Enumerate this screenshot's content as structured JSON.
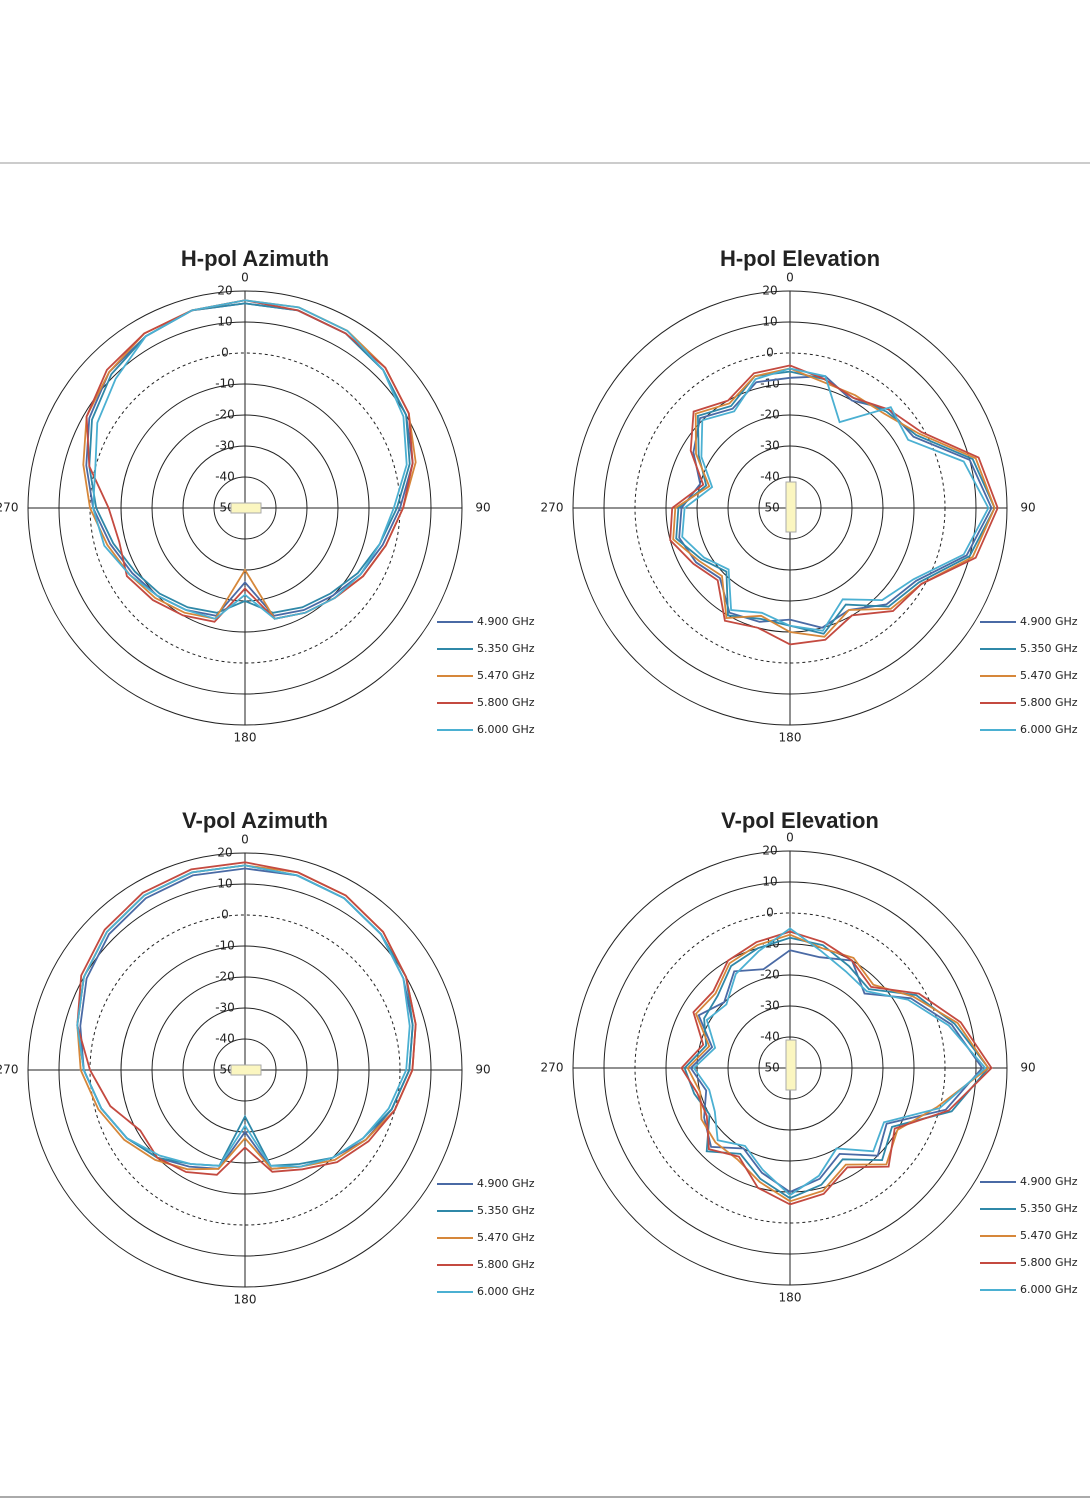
{
  "chart_data": [
    {
      "type": "polar",
      "title": "H-pol Azimuth",
      "x": [
        0,
        15,
        30,
        45,
        60,
        75,
        90,
        105,
        120,
        135,
        150,
        165,
        180,
        195,
        210,
        225,
        240,
        255,
        270,
        285,
        300,
        315,
        330,
        345
      ],
      "xlim": [
        0,
        360
      ],
      "xticks": [
        0,
        90,
        180,
        270
      ],
      "ylim": [
        -50,
        20
      ],
      "yticks": [
        20,
        10,
        0,
        -10,
        -20,
        -30,
        -40,
        -50
      ],
      "grid": true,
      "series": [
        {
          "name": "4.900 GHz",
          "color": "#4a6aa5",
          "values": [
            16,
            16,
            15,
            13,
            10,
            6,
            0,
            -4,
            -7,
            -10,
            -12,
            -14,
            -26,
            -14,
            -12,
            -10,
            -8,
            -5,
            -1,
            3,
            8,
            12,
            14,
            16
          ]
        },
        {
          "name": "5.350 GHz",
          "color": "#2f88a8",
          "values": [
            16,
            16,
            15,
            13,
            10,
            5,
            -1,
            -5,
            -8,
            -11,
            -13,
            -15,
            -20,
            -15,
            -13,
            -11,
            -9,
            -6,
            -2,
            2,
            7,
            11,
            14,
            16
          ]
        },
        {
          "name": "5.470 GHz",
          "color": "#d6873a",
          "values": [
            17,
            17,
            16,
            14,
            11,
            7,
            1,
            -3,
            -6,
            -9,
            -11,
            -13,
            -30,
            -13,
            -11,
            -9,
            -7,
            -4,
            0,
            4,
            9,
            12,
            15,
            16
          ]
        },
        {
          "name": "5.800 GHz",
          "color": "#c44a40",
          "values": [
            17,
            16,
            15,
            14,
            11,
            6,
            1,
            -3,
            -6,
            -9,
            -11,
            -13,
            -24,
            -12,
            -10,
            -8,
            -6,
            -8,
            -6,
            2,
            9,
            13,
            15,
            16
          ]
        },
        {
          "name": "6.000 GHz",
          "color": "#4bb0d2",
          "values": [
            17,
            17,
            16,
            13,
            9,
            4,
            -2,
            -5,
            -7,
            -9,
            -11,
            -13,
            -22,
            -13,
            -12,
            -10,
            -7,
            -3,
            -1,
            0,
            5,
            9,
            14,
            16
          ]
        }
      ]
    },
    {
      "type": "polar",
      "title": "H-pol Elevation",
      "x": [
        0,
        15,
        30,
        45,
        60,
        75,
        90,
        105,
        120,
        135,
        150,
        165,
        180,
        195,
        210,
        225,
        240,
        255,
        270,
        285,
        300,
        315,
        330,
        345
      ],
      "xlim": [
        0,
        360
      ],
      "xticks": [
        0,
        90,
        180,
        270
      ],
      "ylim": [
        -50,
        20
      ],
      "yticks": [
        20,
        10,
        0,
        -10,
        -20,
        -30,
        -40,
        -50
      ],
      "grid": true,
      "series": [
        {
          "name": "4.900 GHz",
          "color": "#4a6aa5",
          "values": [
            -8,
            -6,
            -10,
            -5,
            -4,
            10,
            15,
            9,
            -3,
            -6,
            -12,
            -10,
            -14,
            -12,
            -11,
            -18,
            -15,
            -13,
            -15,
            -20,
            -14,
            -9,
            -13,
            -8
          ]
        },
        {
          "name": "5.350 GHz",
          "color": "#2f88a8",
          "values": [
            -6,
            -7,
            -9,
            -6,
            -3,
            11,
            16,
            10,
            -2,
            -5,
            -14,
            -8,
            -12,
            -13,
            -10,
            -21,
            -17,
            -12,
            -14,
            -22,
            -16,
            -8,
            -12,
            -6
          ]
        },
        {
          "name": "5.470 GHz",
          "color": "#d6873a",
          "values": [
            -5,
            -8,
            -8,
            -7,
            -2,
            12,
            16,
            11,
            -1,
            -4,
            -12,
            -7,
            -10,
            -14,
            -9,
            -19,
            -16,
            -11,
            -13,
            -23,
            -15,
            -7,
            -11,
            -6
          ]
        },
        {
          "name": "5.800 GHz",
          "color": "#c44a40",
          "values": [
            -4,
            -7,
            -9,
            -5,
            -1,
            13,
            17,
            12,
            -1,
            -3,
            -10,
            -6,
            -6,
            -10,
            -8,
            -17,
            -14,
            -10,
            -12,
            -21,
            -13,
            -6,
            -10,
            -5
          ]
        },
        {
          "name": "6.000 GHz",
          "color": "#4bb0d2",
          "values": [
            -5,
            -6,
            -18,
            -4,
            -6,
            8,
            14,
            8,
            -4,
            -8,
            -16,
            -9,
            -12,
            -15,
            -12,
            -22,
            -18,
            -14,
            -16,
            -24,
            -17,
            -10,
            -14,
            -7
          ]
        }
      ]
    },
    {
      "type": "polar",
      "title": "V-pol Azimuth",
      "x": [
        0,
        15,
        30,
        45,
        60,
        75,
        90,
        105,
        120,
        135,
        150,
        165,
        180,
        195,
        210,
        225,
        240,
        255,
        270,
        285,
        300,
        315,
        330,
        345
      ],
      "xlim": [
        0,
        360
      ],
      "xticks": [
        0,
        90,
        180,
        270
      ],
      "ylim": [
        -50,
        20
      ],
      "yticks": [
        20,
        10,
        0,
        -10,
        -20,
        -30,
        -40,
        -50
      ],
      "grid": true,
      "series": [
        {
          "name": "4.900 GHz",
          "color": "#4a6aa5",
          "values": [
            15,
            15,
            14,
            12,
            9,
            6,
            3,
            -1,
            -5,
            -10,
            -14,
            -17,
            -30,
            -17,
            -14,
            -10,
            -6,
            -2,
            2,
            5,
            9,
            12,
            14,
            15
          ]
        },
        {
          "name": "5.350 GHz",
          "color": "#2f88a8",
          "values": [
            16,
            15,
            14,
            12,
            10,
            6,
            3,
            -1,
            -6,
            -10,
            -15,
            -18,
            -35,
            -18,
            -15,
            -10,
            -6,
            -2,
            2,
            6,
            10,
            13,
            15,
            16
          ]
        },
        {
          "name": "5.470 GHz",
          "color": "#d6873a",
          "values": [
            16,
            16,
            15,
            13,
            10,
            7,
            4,
            0,
            -5,
            -9,
            -14,
            -17,
            -28,
            -17,
            -13,
            -9,
            -5,
            -1,
            3,
            6,
            10,
            13,
            15,
            16
          ]
        },
        {
          "name": "5.800 GHz",
          "color": "#c44a40",
          "values": [
            17,
            16,
            15,
            13,
            10,
            7,
            4,
            0,
            -4,
            -8,
            -13,
            -16,
            -25,
            -15,
            -12,
            -10,
            -11,
            -5,
            0,
            6,
            11,
            14,
            16,
            17
          ]
        },
        {
          "name": "6.000 GHz",
          "color": "#4bb0d2",
          "values": [
            16,
            15,
            14,
            12,
            9,
            5,
            2,
            -2,
            -6,
            -10,
            -14,
            -18,
            -32,
            -18,
            -15,
            -11,
            -6,
            -2,
            2,
            6,
            10,
            13,
            15,
            16
          ]
        }
      ]
    },
    {
      "type": "polar",
      "title": "V-pol Elevation",
      "x": [
        0,
        15,
        30,
        45,
        60,
        75,
        90,
        105,
        120,
        135,
        150,
        165,
        180,
        195,
        210,
        225,
        240,
        255,
        270,
        285,
        300,
        315,
        330,
        345
      ],
      "xlim": [
        0,
        360
      ],
      "xticks": [
        0,
        90,
        180,
        270
      ],
      "ylim": [
        -50,
        20
      ],
      "yticks": [
        20,
        10,
        0,
        -10,
        -20,
        -30,
        -40,
        -50
      ],
      "grid": true,
      "series": [
        {
          "name": "4.900 GHz",
          "color": "#4a6aa5",
          "values": [
            -12,
            -13,
            -10,
            -16,
            -5,
            4,
            12,
            2,
            -14,
            -10,
            -18,
            -13,
            -10,
            -15,
            -20,
            -14,
            -18,
            -22,
            -18,
            -24,
            -16,
            -20,
            -14,
            -17
          ]
        },
        {
          "name": "5.350 GHz",
          "color": "#2f88a8",
          "values": [
            -8,
            -9,
            -12,
            -14,
            -3,
            5,
            14,
            4,
            -12,
            -8,
            -16,
            -11,
            -8,
            -13,
            -18,
            -12,
            -20,
            -18,
            -16,
            -22,
            -18,
            -17,
            -12,
            -10
          ]
        },
        {
          "name": "5.470 GHz",
          "color": "#d6873a",
          "values": [
            -7,
            -10,
            -9,
            -12,
            -4,
            6,
            14,
            -1,
            -10,
            -6,
            -14,
            -9,
            -7,
            -12,
            -16,
            -16,
            -17,
            -20,
            -17,
            -23,
            -15,
            -16,
            -11,
            -9
          ]
        },
        {
          "name": "5.800 GHz",
          "color": "#c44a40",
          "values": [
            -6,
            -8,
            -10,
            -13,
            -2,
            7,
            15,
            3,
            -11,
            -5,
            -13,
            -8,
            -6,
            -10,
            -17,
            -13,
            -19,
            -19,
            -15,
            -21,
            -14,
            -15,
            -10,
            -8
          ]
        },
        {
          "name": "6.000 GHz",
          "color": "#4bb0d2",
          "values": [
            -5,
            -11,
            -14,
            -15,
            -6,
            3,
            13,
            0,
            -15,
            -12,
            -20,
            -14,
            -9,
            -16,
            -21,
            -17,
            -22,
            -23,
            -19,
            -25,
            -19,
            -21,
            -15,
            -11
          ]
        }
      ]
    }
  ]
}
